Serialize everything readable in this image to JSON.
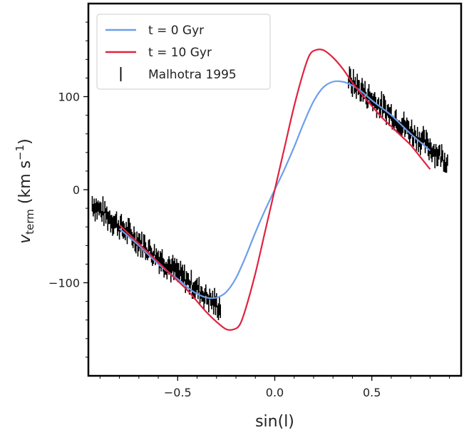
{
  "chart_data": {
    "type": "line",
    "xlabel": "sin(l)",
    "ylabel": {
      "base": "v",
      "subscript": "term",
      "unit_open": " (km s",
      "unit_sup": "−1",
      "unit_close": ")"
    },
    "xlim": [
      -0.96,
      0.96
    ],
    "ylim": [
      -200,
      200
    ],
    "xticks": [
      {
        "value": -0.5,
        "label": "−0.5"
      },
      {
        "value": 0.0,
        "label": "0.0"
      },
      {
        "value": 0.5,
        "label": "0.5"
      }
    ],
    "yticks": [
      {
        "value": -100,
        "label": "−100"
      },
      {
        "value": 0,
        "label": "0"
      },
      {
        "value": 100,
        "label": "100"
      }
    ],
    "legend": {
      "position": "top-left",
      "entries": [
        "t = 0 Gyr",
        "t = 10 Gyr",
        "Malhotra 1995"
      ]
    },
    "series": [
      {
        "name": "t = 0 Gyr",
        "color": "#6d9eeb",
        "style": "line",
        "x": [
          -0.8,
          -0.7,
          -0.6,
          -0.5,
          -0.45,
          -0.4,
          -0.35,
          -0.3,
          -0.25,
          -0.2,
          -0.15,
          -0.1,
          -0.05,
          0.0,
          0.05,
          0.1,
          0.15,
          0.2,
          0.25,
          0.3,
          0.35,
          0.4,
          0.45,
          0.5,
          0.55,
          0.6,
          0.65,
          0.7,
          0.75,
          0.8
        ],
        "y": [
          -42,
          -60,
          -80,
          -96,
          -105,
          -112,
          -116,
          -116,
          -110,
          -95,
          -72,
          -46,
          -22,
          0,
          22,
          46,
          72,
          95,
          110,
          116,
          116,
          112,
          105,
          96,
          88,
          80,
          70,
          60,
          51,
          42
        ]
      },
      {
        "name": "t = 10 Gyr",
        "color": "#e0223f",
        "style": "line",
        "x": [
          -0.8,
          -0.7,
          -0.6,
          -0.5,
          -0.45,
          -0.4,
          -0.35,
          -0.3,
          -0.25,
          -0.21,
          -0.18,
          -0.15,
          -0.1,
          -0.05,
          0.0,
          0.05,
          0.1,
          0.15,
          0.18,
          0.21,
          0.25,
          0.3,
          0.35,
          0.4,
          0.45,
          0.5,
          0.55,
          0.6,
          0.65,
          0.7,
          0.75,
          0.8
        ],
        "y": [
          -38,
          -58,
          -78,
          -98,
          -108,
          -120,
          -132,
          -142,
          -150,
          -150,
          -145,
          -128,
          -90,
          -45,
          0,
          45,
          90,
          128,
          145,
          150,
          150,
          142,
          130,
          115,
          102,
          90,
          78,
          68,
          58,
          48,
          35,
          22
        ]
      },
      {
        "name": "Malhotra 1995",
        "color": "#000000",
        "style": "errorbar",
        "segments": [
          {
            "x_start": -0.94,
            "x_end": -0.28,
            "y_start": -15,
            "y_end": -127,
            "noise": 8,
            "spacing": 0.005,
            "halfwidth": 8
          },
          {
            "x_start": 0.38,
            "x_end": 0.89,
            "y_start": 118,
            "y_end": 30,
            "noise": 8,
            "spacing": 0.005,
            "halfwidth": 8
          }
        ]
      }
    ]
  }
}
